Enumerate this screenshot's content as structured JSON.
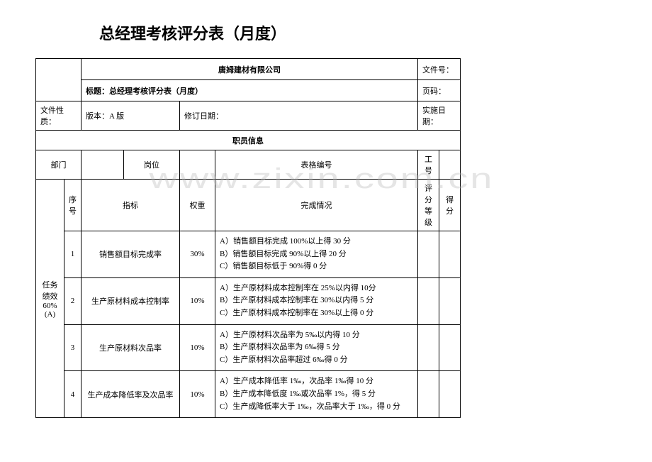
{
  "pageTitle": "总经理考核评分表（月度）",
  "header": {
    "company": "唐姆建材有限公司",
    "docNoLabel": "文件号：",
    "subtitleLabel": "标题：",
    "subtitle": "总经理考核评分表（月度）",
    "pageLabel": "页码：",
    "docNatureLabel": "文件性质：",
    "versionLabel": "版本：",
    "versionValue": "A 版",
    "revisionLabel": "修订日期：",
    "effectiveLabel": "实施日期："
  },
  "employeeSection": {
    "title": "职员信息",
    "deptLabel": "部门",
    "positionLabel": "岗位",
    "formNoLabel": "表格编号",
    "empNoLabel": "工号"
  },
  "tableHeaders": {
    "seq": "序号",
    "indicator": "指标",
    "weight": "权重",
    "completion": "完成情况",
    "grade": "评分等级",
    "score": "得分"
  },
  "category": {
    "name": "任务绩效60%(A)",
    "rows": [
      {
        "seq": "1",
        "indicator": "销售额目标完成率",
        "weight": "30%",
        "criteria": "A）销售额目标完成 100%以上得 30 分\nB）销售额目标完成 90%以上得 20 分\nC）销售额目标低于 90%得 0 分"
      },
      {
        "seq": "2",
        "indicator": "生产原材料成本控制率",
        "weight": "10%",
        "criteria": "A）生产原材料成本控制率在 25%以内得 10分\nB）生产原材料成本控制率在 30%以内得 5 分\nC）生产原材料成本控制率在 30%以上得 0 分"
      },
      {
        "seq": "3",
        "indicator": "生产原材料次品率",
        "weight": "10%",
        "criteria": "A）生产原材料次品率为 5‰以内得 10 分\nB）生产原材料次品率为 6‰得 5 分\nC）生产原材料次品率超过 6‰得 0 分"
      },
      {
        "seq": "4",
        "indicator": "生产成本降低率及次品率",
        "weight": "10%",
        "criteria": "A）生产成本降低率 1‰，次品率 1‰得 10 分\nB）生产成本降低度 1‰或次品率 1%，得 5 分\nC）生产成降低率大于 1‰，次品率大于 1‰，得 0 分"
      }
    ]
  },
  "watermark": "www.zixin.com.cn"
}
